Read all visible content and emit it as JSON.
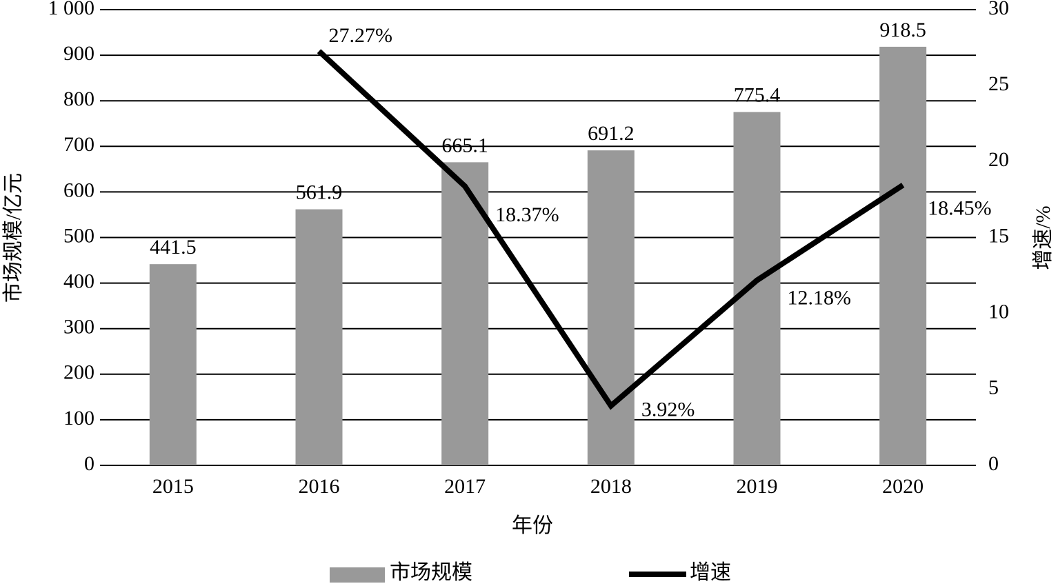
{
  "chart_data": {
    "type": "bar",
    "categories": [
      "2015",
      "2016",
      "2017",
      "2018",
      "2019",
      "2020"
    ],
    "series": [
      {
        "name": "市场规模",
        "type": "bar",
        "color": "#999999",
        "values": [
          441.5,
          561.9,
          665.1,
          691.2,
          775.4,
          918.5
        ]
      },
      {
        "name": "增速",
        "type": "line",
        "axis": "y2",
        "color": "#000000",
        "values": [
          null,
          27.27,
          18.37,
          3.92,
          12.18,
          18.45
        ],
        "value_labels": [
          null,
          "27.27%",
          "18.37%",
          "3.92%",
          "12.18%",
          "18.45%"
        ]
      }
    ],
    "ylim": [
      0,
      1000
    ],
    "yticks": [
      0,
      100,
      200,
      300,
      400,
      500,
      600,
      700,
      800,
      900,
      {
        "value": 1000,
        "label": "1 000"
      }
    ],
    "y2lim": [
      0,
      30
    ],
    "y2ticks": [
      0,
      5,
      10,
      15,
      20,
      25,
      30
    ],
    "ylabel": "市场规模/亿元",
    "y2label": "增速/%",
    "xlabel": "年份",
    "grid": true
  }
}
